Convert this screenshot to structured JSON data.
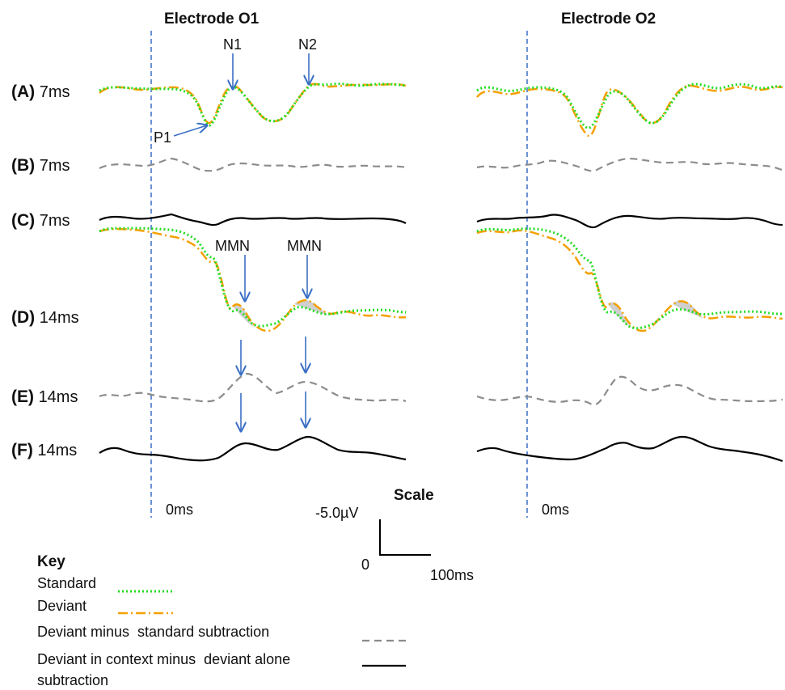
{
  "headers": {
    "o1": "Electrode O1",
    "o2": "Electrode O2"
  },
  "rows": [
    {
      "letter": "(A)",
      "time": "7ms"
    },
    {
      "letter": "(B)",
      "time": "7ms"
    },
    {
      "letter": "(C)",
      "time": "7ms"
    },
    {
      "letter": "(D)",
      "time": "14ms"
    },
    {
      "letter": "(E)",
      "time": "14ms"
    },
    {
      "letter": "(F)",
      "time": "14ms"
    }
  ],
  "annotations": {
    "n1": "N1",
    "n2": "N2",
    "p1": "P1",
    "mmn1": "MMN",
    "mmn2": "MMN"
  },
  "zero_labels": {
    "o1": "0ms",
    "o2": "0ms"
  },
  "scale": {
    "title": "Scale",
    "amplitude": "-5.0µV",
    "origin": "0",
    "time": "100ms"
  },
  "key": {
    "title": "Key",
    "items": [
      {
        "label": "Standard"
      },
      {
        "label": "Deviant"
      },
      {
        "label": "Deviant minus  standard subtraction"
      },
      {
        "label": "Deviant in context minus  deviant alone"
      }
    ],
    "continuation": "subtraction"
  },
  "colors": {
    "standard": "#22dd22",
    "deviant": "#f5a000",
    "subtraction_dashed": "#8c8c8c",
    "context_subtraction": "#000000",
    "onset_line": "#3a6fc4",
    "arrow": "#3a6fc4",
    "mmn_fill": "#cfcfcf"
  },
  "line_styles": {
    "standard": "dotted",
    "deviant": "dash-dot",
    "subtraction": "dashed",
    "context_subtraction": "solid"
  }
}
